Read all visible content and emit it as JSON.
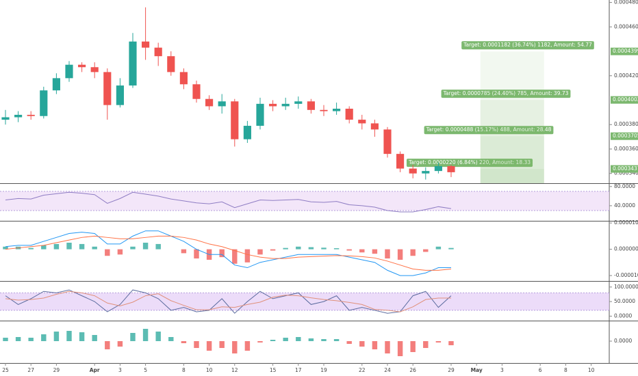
{
  "chart_data": {
    "type": "candlestick",
    "x": [
      0,
      1,
      2,
      3,
      4,
      5,
      6,
      7,
      8,
      9,
      10,
      11,
      12,
      13,
      14,
      15,
      16,
      17,
      18,
      19,
      20,
      21,
      22,
      23,
      24,
      25,
      26,
      27,
      28,
      29,
      30,
      31,
      32,
      33,
      34,
      35
    ],
    "open": [
      0.000384,
      0.000386,
      0.000388,
      0.000387,
      0.000408,
      0.000418,
      0.000429,
      0.000427,
      0.000423,
      0.000396,
      0.000412,
      0.000448,
      0.000443,
      0.000436,
      0.000423,
      0.000413,
      0.000401,
      0.000395,
      0.000399,
      0.000368,
      0.000379,
      0.000397,
      0.000395,
      0.000397,
      0.000399,
      0.000392,
      0.000391,
      0.000393,
      0.000384,
      0.000381,
      0.000376,
      0.000356,
      0.000344,
      0.00034,
      0.000342,
      0.000346
    ],
    "high": [
      0.000392,
      0.000391,
      0.000391,
      0.000411,
      0.000422,
      0.000432,
      0.000431,
      0.000431,
      0.000426,
      0.000418,
      0.000455,
      0.000476,
      0.000447,
      0.00044,
      0.000426,
      0.000416,
      0.000404,
      0.000405,
      0.000401,
      0.000383,
      0.000402,
      0.0004,
      0.000402,
      0.000403,
      0.000401,
      0.000396,
      0.000398,
      0.000395,
      0.000388,
      0.000384,
      0.000378,
      0.000358,
      0.000347,
      0.000345,
      0.000349,
      0.000347
    ],
    "low": [
      0.00038,
      0.000382,
      0.000384,
      0.000385,
      0.000405,
      0.000415,
      0.000423,
      0.000418,
      0.000384,
      0.000394,
      0.00041,
      0.000433,
      0.000428,
      0.00042,
      0.000409,
      0.000398,
      0.000392,
      0.000389,
      0.000362,
      0.000365,
      0.000376,
      0.000391,
      0.000392,
      0.000393,
      0.000389,
      0.000387,
      0.000388,
      0.000381,
      0.000376,
      0.00037,
      0.000353,
      0.000341,
      0.000336,
      0.000335,
      0.00034,
      0.000337
    ],
    "close": [
      0.000386,
      0.000388,
      0.000387,
      0.000408,
      0.000418,
      0.000429,
      0.000427,
      0.000423,
      0.000396,
      0.000412,
      0.000448,
      0.000443,
      0.000436,
      0.000423,
      0.000413,
      0.000401,
      0.000395,
      0.000399,
      0.000368,
      0.000379,
      0.000397,
      0.000395,
      0.000397,
      0.000399,
      0.000392,
      0.000391,
      0.000393,
      0.000384,
      0.000381,
      0.000376,
      0.000356,
      0.000344,
      0.00034,
      0.000342,
      0.000346,
      0.000341
    ],
    "up_color": "#26a69a",
    "down_color": "#ef5350",
    "xlim": [
      -0.43,
      47.42
    ],
    "xticks": [
      {
        "value": 0,
        "label": "25"
      },
      {
        "value": 2,
        "label": "27"
      },
      {
        "value": 4,
        "label": "29"
      },
      {
        "value": 7,
        "label": "Apr"
      },
      {
        "value": 9,
        "label": "3"
      },
      {
        "value": 11,
        "label": "5"
      },
      {
        "value": 14,
        "label": "8"
      },
      {
        "value": 16,
        "label": "10"
      },
      {
        "value": 18,
        "label": "12"
      },
      {
        "value": 21,
        "label": "15"
      },
      {
        "value": 23,
        "label": "17"
      },
      {
        "value": 25,
        "label": "19"
      },
      {
        "value": 28,
        "label": "22"
      },
      {
        "value": 30,
        "label": "24"
      },
      {
        "value": 32,
        "label": "26"
      },
      {
        "value": 35,
        "label": "29"
      },
      {
        "value": 37,
        "label": "May"
      },
      {
        "value": 39,
        "label": "3"
      },
      {
        "value": 42,
        "label": "6"
      },
      {
        "value": 44,
        "label": "8"
      },
      {
        "value": 46,
        "label": "10"
      }
    ],
    "ylim": [
      0.000332,
      0.000482
    ],
    "yticks": [
      {
        "value": 0.00048,
        "label": "0.0004800"
      },
      {
        "value": 0.00046,
        "label": "0.0004600"
      },
      {
        "value": 0.00042,
        "label": "0.0004200"
      },
      {
        "value": 0.00038,
        "label": "0.0003800"
      },
      {
        "value": 0.00036,
        "label": "0.0003600"
      },
      {
        "value": 0.00034,
        "label": "0.0003400"
      }
    ],
    "target_color": "#7cb86f",
    "targets": [
      {
        "label": "Target: 0.0000220 (6.84%) 220, Amount: 18.33",
        "price": {
          "value": 0.0003437,
          "label": "0.0003437"
        }
      },
      {
        "label": "Target: 0.0000488 (15.17%) 488, Amount: 28.48",
        "price": {
          "value": 0.0003705,
          "label": "0.0003705"
        }
      },
      {
        "label": "Target: 0.0000785 (24.40%) 785, Amount: 39.73",
        "price": {
          "value": 0.0004002,
          "label": "0.0004002"
        }
      },
      {
        "label": "Target: 0.0001182 (36.74%) 1182, Amount: 54.77",
        "price": {
          "value": 0.0004399,
          "label": "0.0004399"
        }
      }
    ],
    "panels": [
      {
        "type": "line",
        "ylim": [
          10,
          84
        ],
        "yticks": [
          {
            "value": 80,
            "label": "80.0000"
          },
          {
            "value": 40,
            "label": "40.0000"
          }
        ],
        "band": [
          30,
          70
        ],
        "band_color": "#eedcf7",
        "series": [
          {
            "color": "#8e7cc3",
            "values": [
              52,
              55,
              54,
              62,
              65,
              68,
              66,
              63,
              45,
              55,
              68,
              64,
              60,
              54,
              50,
              46,
              44,
              48,
              36,
              44,
              52,
              51,
              52,
              53,
              48,
              47,
              49,
              42,
              40,
              37,
              30,
              27,
              27,
              32,
              38,
              34
            ]
          }
        ]
      },
      {
        "type": "macd",
        "ylim": [
          -1.18e-05,
          1.03e-05
        ],
        "yticks": [
          {
            "value": 1e-05,
            "label": "0.0000100"
          },
          {
            "value": 0,
            "label": "0.0000000"
          },
          {
            "value": -1e-05,
            "label": "-0.0000100"
          }
        ],
        "histogram": {
          "up_color": "#26a69a",
          "down_color": "#ef5350",
          "values": [
            1e-06,
            1e-06,
            5e-07,
            1.5e-06,
            2e-06,
            2.5e-06,
            2e-06,
            1e-06,
            -2.5e-06,
            -2e-06,
            1e-06,
            2.5e-06,
            2e-06,
            0,
            -1.5e-06,
            -3.5e-06,
            -4e-06,
            -3e-06,
            -5.5e-06,
            -5e-06,
            -2e-06,
            -5e-07,
            5e-07,
            1e-06,
            8e-07,
            6e-07,
            4e-07,
            -5e-07,
            -1.2e-06,
            -1.7e-06,
            -3.5e-06,
            -4e-06,
            -2.5e-06,
            -1e-06,
            1e-06,
            5e-07
          ]
        },
        "series": [
          {
            "color": "#2196f3",
            "values": [
              1e-06,
              1.5e-06,
              1.5e-06,
              3e-06,
              4.5e-06,
              6e-06,
              6.5e-06,
              6e-06,
              2e-06,
              2e-06,
              5e-06,
              7e-06,
              7e-06,
              5e-06,
              3e-06,
              0,
              -2e-06,
              -2e-06,
              -6e-06,
              -7e-06,
              -5e-06,
              -4e-06,
              -3e-06,
              -2e-06,
              -2e-06,
              -2e-06,
              -2e-06,
              -3e-06,
              -4e-06,
              -5e-06,
              -8e-06,
              -1e-05,
              -1e-05,
              -9e-06,
              -7e-06,
              -7e-06
            ]
          },
          {
            "color": "#ff7043",
            "values": [
              0,
              5e-07,
              1e-06,
              1.5e-06,
              2.5e-06,
              3.5e-06,
              4.5e-06,
              5e-06,
              4.5e-06,
              4e-06,
              4e-06,
              4.5e-06,
              5e-06,
              5e-06,
              4.5e-06,
              3.5e-06,
              2e-06,
              1e-06,
              -5e-07,
              -2e-06,
              -3e-06,
              -3.5e-06,
              -3.5e-06,
              -3e-06,
              -2.8e-06,
              -2.6e-06,
              -2.4e-06,
              -2.5e-06,
              -2.8e-06,
              -3.3e-06,
              -4.5e-06,
              -6e-06,
              -7.5e-06,
              -8e-06,
              -8e-06,
              -7.5e-06
            ]
          }
        ]
      },
      {
        "type": "line",
        "ylim": [
          -13,
          116
        ],
        "yticks": [
          {
            "value": 100,
            "label": "100.0000"
          },
          {
            "value": 50,
            "label": "50.0000"
          },
          {
            "value": 0,
            "label": "0.0000"
          }
        ],
        "band": [
          20,
          80
        ],
        "band_color": "#e4cdf7",
        "series": [
          {
            "color": "#5b6b9e",
            "values": [
              70,
              40,
              60,
              85,
              80,
              90,
              70,
              50,
              15,
              40,
              90,
              80,
              60,
              20,
              30,
              15,
              20,
              60,
              10,
              50,
              85,
              60,
              70,
              80,
              40,
              50,
              70,
              20,
              30,
              20,
              10,
              15,
              70,
              85,
              30,
              70
            ]
          },
          {
            "color": "#e0907a",
            "values": [
              60,
              55,
              57,
              62,
              75,
              85,
              80,
              70,
              45,
              35,
              48,
              70,
              77,
              53,
              37,
              22,
              22,
              32,
              30,
              40,
              48,
              65,
              72,
              70,
              63,
              57,
              53,
              47,
              40,
              23,
              20,
              15,
              32,
              57,
              62,
              62
            ]
          }
        ]
      },
      {
        "type": "histogram",
        "ylim": [
          -3.1e-05,
          2.9e-05
        ],
        "yticks": [
          {
            "value": 0,
            "label": "0.0000"
          }
        ],
        "histogram": {
          "up_color": "#26a69a",
          "down_color": "#ef5350",
          "values": [
            5e-06,
            6e-06,
            5e-06,
            1e-05,
            1.4e-05,
            1.5e-05,
            1.3e-05,
            9e-06,
            -1.2e-05,
            -8e-06,
            1.2e-05,
            1.8e-05,
            1.4e-05,
            6e-06,
            -3e-06,
            -1e-05,
            -1.4e-05,
            -1e-05,
            -1.8e-05,
            -1.4e-05,
            -2e-06,
            2e-06,
            5e-06,
            6e-06,
            4e-06,
            3e-06,
            3e-06,
            -4e-06,
            -8e-06,
            -1.2e-05,
            -1.8e-05,
            -2.2e-05,
            -1.6e-05,
            -1e-05,
            -2e-06,
            -6e-06
          ]
        }
      }
    ]
  }
}
